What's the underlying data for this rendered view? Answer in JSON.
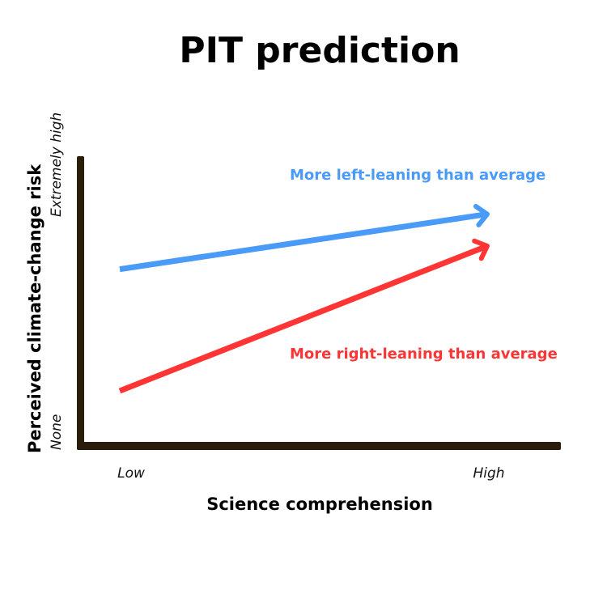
{
  "chart_data": {
    "type": "line",
    "title": "PIT prediction",
    "xlabel": "Science comprehension",
    "ylabel": "Perceived climate-change risk",
    "x_tick_labels": [
      "Low",
      "High"
    ],
    "y_tick_labels": [
      "None",
      "Extremely high"
    ],
    "xlim": [
      0,
      1
    ],
    "ylim": [
      0,
      1
    ],
    "grid": false,
    "axis_color": "#2a1e0a",
    "series": [
      {
        "name": "More left-leaning than average",
        "color": "#4a9af8",
        "x": [
          0,
          1
        ],
        "y": [
          0.61,
          0.8
        ],
        "arrow_end": true
      },
      {
        "name": "More right-leaning than average",
        "color": "#ff3535",
        "x": [
          0,
          1
        ],
        "y": [
          0.19,
          0.69
        ],
        "arrow_end": true
      }
    ]
  }
}
